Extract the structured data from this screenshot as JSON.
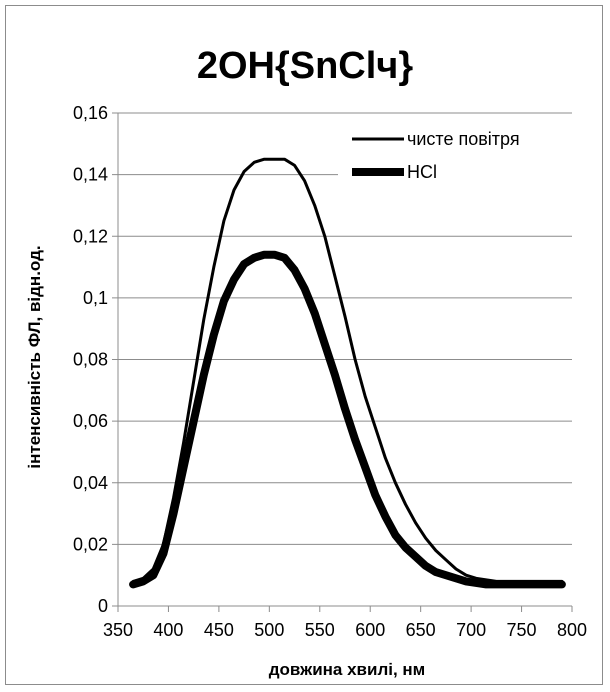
{
  "chart_data": {
    "type": "line",
    "title": "2OH{SnClч}",
    "xlabel": "довжина хвилі, нм",
    "ylabel": "інтенсивність ФЛ, відн.од.",
    "xlim": [
      350,
      800
    ],
    "ylim": [
      0,
      0.16
    ],
    "x_ticks": [
      "350",
      "400",
      "450",
      "500",
      "550",
      "600",
      "650",
      "700",
      "750",
      "800"
    ],
    "y_ticks": [
      "0",
      "0,02",
      "0,04",
      "0,06",
      "0,08",
      "0,1",
      "0,12",
      "0,14",
      "0,16"
    ],
    "grid": "horizontal",
    "legend_position": "top-right",
    "series": [
      {
        "name": "чисте повітря",
        "line_weight": "thin",
        "color": "#000000",
        "x": [
          365,
          375,
          385,
          395,
          405,
          415,
          425,
          435,
          445,
          455,
          465,
          475,
          485,
          495,
          505,
          515,
          525,
          535,
          545,
          555,
          565,
          575,
          585,
          595,
          605,
          615,
          625,
          635,
          645,
          655,
          665,
          675,
          685,
          695,
          705,
          715,
          725,
          735,
          745,
          755,
          765,
          775,
          790
        ],
        "y": [
          0.008,
          0.009,
          0.012,
          0.02,
          0.035,
          0.053,
          0.073,
          0.093,
          0.11,
          0.125,
          0.135,
          0.141,
          0.144,
          0.145,
          0.145,
          0.145,
          0.143,
          0.138,
          0.13,
          0.12,
          0.107,
          0.094,
          0.08,
          0.068,
          0.058,
          0.048,
          0.04,
          0.033,
          0.027,
          0.022,
          0.018,
          0.015,
          0.012,
          0.01,
          0.009,
          0.0085,
          0.008,
          0.008,
          0.008,
          0.008,
          0.008,
          0.008,
          0.008
        ]
      },
      {
        "name": "HCl",
        "line_weight": "thick",
        "color": "#000000",
        "x": [
          365,
          375,
          385,
          395,
          405,
          415,
          425,
          435,
          445,
          455,
          465,
          475,
          485,
          495,
          505,
          515,
          525,
          535,
          545,
          555,
          565,
          575,
          585,
          595,
          605,
          615,
          625,
          635,
          645,
          655,
          665,
          675,
          685,
          695,
          705,
          715,
          725,
          735,
          745,
          755,
          765,
          775,
          790
        ],
        "y": [
          0.007,
          0.008,
          0.01,
          0.017,
          0.03,
          0.045,
          0.06,
          0.075,
          0.088,
          0.099,
          0.106,
          0.111,
          0.113,
          0.114,
          0.114,
          0.113,
          0.109,
          0.103,
          0.095,
          0.085,
          0.075,
          0.064,
          0.054,
          0.045,
          0.036,
          0.029,
          0.023,
          0.019,
          0.016,
          0.013,
          0.011,
          0.01,
          0.009,
          0.008,
          0.0075,
          0.007,
          0.007,
          0.007,
          0.007,
          0.007,
          0.007,
          0.007,
          0.007
        ]
      }
    ]
  }
}
